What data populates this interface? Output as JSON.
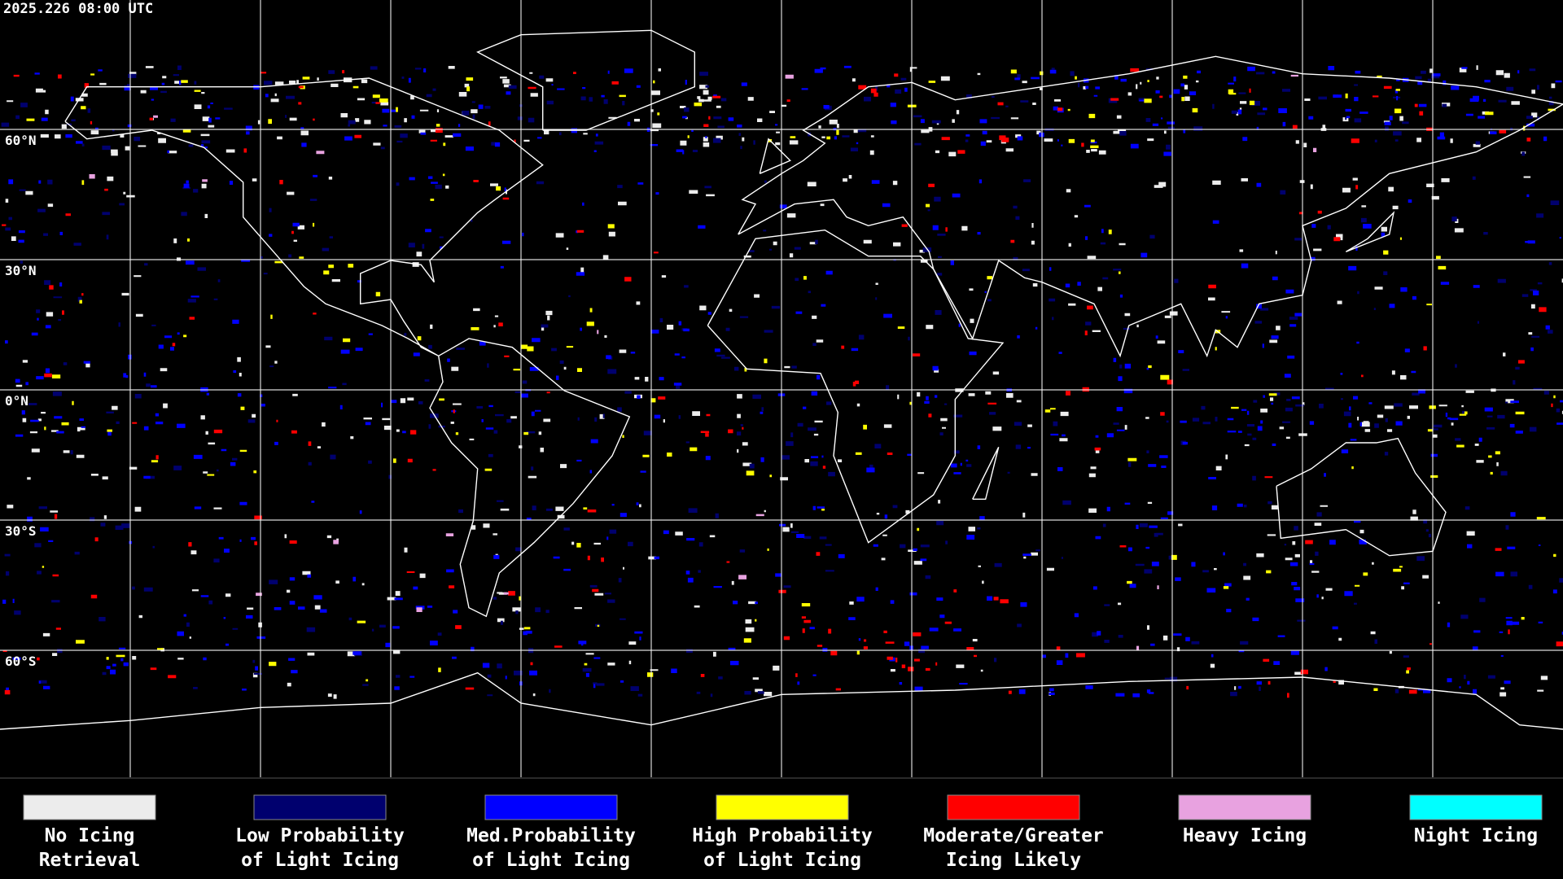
{
  "timestamp": "2025.226 08:00 UTC",
  "latitude_labels": [
    "60°N",
    "30°N",
    "0°N",
    "30°S",
    "60°S"
  ],
  "legend": [
    {
      "label": [
        "No Icing",
        "Retrieval"
      ],
      "color": "#ececec"
    },
    {
      "label": [
        "Low Probability",
        "of Light Icing"
      ],
      "color": "#00006e"
    },
    {
      "label": [
        "Med.Probability",
        "of Light Icing"
      ],
      "color": "#0000ff"
    },
    {
      "label": [
        "High Probability",
        "of Light Icing"
      ],
      "color": "#ffff00"
    },
    {
      "label": [
        "Moderate/Greater",
        "Icing Likely"
      ],
      "color": "#ff0000"
    },
    {
      "label": [
        "Heavy Icing"
      ],
      "color": "#e8a2e0"
    },
    {
      "label": [
        "Night Icing"
      ],
      "color": "#00ffff"
    }
  ]
}
